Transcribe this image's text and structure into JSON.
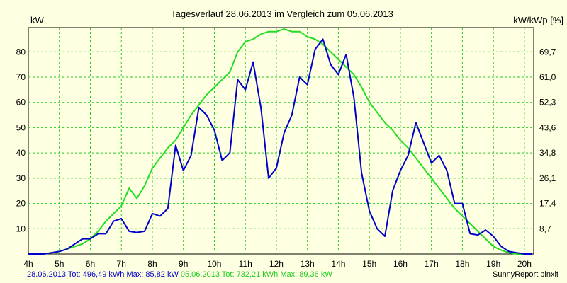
{
  "chart_data": {
    "type": "line",
    "title": "Tagesverlauf 28.06.2013 im Vergleich zum 05.06.2013",
    "ylabel_left": "kW",
    "ylabel_right": "kW/kWp [%]",
    "xlim": [
      4,
      20.3
    ],
    "ylim": [
      0,
      89.6
    ],
    "x_ticks": [
      4,
      5,
      6,
      7,
      8,
      9,
      10,
      11,
      12,
      13,
      14,
      15,
      16,
      17,
      18,
      19,
      20
    ],
    "x_tick_labels": [
      "4h",
      "5h",
      "6h",
      "7h",
      "8h",
      "9h",
      "10h",
      "11h",
      "12h",
      "13h",
      "14h",
      "15h",
      "16h",
      "17h",
      "18h",
      "19h",
      "20h"
    ],
    "y_ticks_left": [
      10,
      20,
      30,
      40,
      50,
      60,
      70,
      80
    ],
    "y_ticks_right": [
      8.7,
      17.4,
      26.1,
      34.8,
      43.6,
      52.3,
      61.0,
      69.7
    ],
    "y_tick_labels_right": [
      "8,7",
      "17,4",
      "26,1",
      "34,8",
      "43,6",
      "52,3",
      "61,0",
      "69,7"
    ],
    "grid": true,
    "series": [
      {
        "name": "28.06.2013",
        "color": "#0000cc",
        "x": [
          4.0,
          4.25,
          4.5,
          4.75,
          5.0,
          5.25,
          5.5,
          5.75,
          6.0,
          6.25,
          6.5,
          6.75,
          7.0,
          7.25,
          7.5,
          7.75,
          8.0,
          8.25,
          8.5,
          8.75,
          9.0,
          9.25,
          9.5,
          9.75,
          10.0,
          10.25,
          10.5,
          10.75,
          11.0,
          11.25,
          11.5,
          11.75,
          12.0,
          12.25,
          12.5,
          12.75,
          13.0,
          13.25,
          13.5,
          13.75,
          14.0,
          14.25,
          14.5,
          14.75,
          15.0,
          15.25,
          15.5,
          15.75,
          16.0,
          16.25,
          16.5,
          16.75,
          17.0,
          17.25,
          17.5,
          17.75,
          18.0,
          18.25,
          18.5,
          18.75,
          19.0,
          19.25,
          19.5,
          19.75,
          20.0,
          20.25
        ],
        "values": [
          0,
          0,
          0,
          0.5,
          1,
          2,
          4,
          6,
          6,
          8,
          8,
          13,
          14,
          9,
          8.5,
          9,
          16,
          15,
          18,
          43,
          33,
          39,
          58,
          55,
          49,
          37,
          40,
          69,
          65,
          76,
          58,
          30,
          34,
          48,
          55,
          70,
          67,
          81,
          85,
          75,
          71,
          79,
          62,
          32,
          17,
          10,
          7,
          25,
          33,
          39,
          52,
          44,
          36,
          39,
          33,
          20,
          20,
          8,
          7.5,
          9.5,
          7,
          3,
          1,
          0.5,
          0,
          0
        ]
      },
      {
        "name": "05.06.2013",
        "color": "#22dd22",
        "x": [
          4.0,
          4.25,
          4.5,
          4.75,
          5.0,
          5.25,
          5.5,
          5.75,
          6.0,
          6.25,
          6.5,
          6.75,
          7.0,
          7.25,
          7.5,
          7.75,
          8.0,
          8.25,
          8.5,
          8.75,
          9.0,
          9.25,
          9.5,
          9.75,
          10.0,
          10.25,
          10.5,
          10.75,
          11.0,
          11.25,
          11.5,
          11.75,
          12.0,
          12.25,
          12.5,
          12.75,
          13.0,
          13.25,
          13.5,
          13.75,
          14.0,
          14.25,
          14.5,
          14.75,
          15.0,
          15.25,
          15.5,
          15.75,
          16.0,
          16.25,
          16.5,
          16.75,
          17.0,
          17.25,
          17.5,
          17.75,
          18.0,
          18.25,
          18.5,
          18.75,
          19.0,
          19.25,
          19.5,
          19.75,
          20.0,
          20.25
        ],
        "values": [
          0,
          0,
          0,
          0.5,
          1,
          2,
          3,
          4,
          6,
          9,
          13,
          16,
          19,
          26,
          22,
          27,
          34,
          38,
          42,
          45,
          50,
          55,
          59,
          63,
          66,
          69,
          72,
          80,
          84,
          85,
          87,
          88,
          88,
          89,
          88,
          88,
          86,
          85,
          83,
          80,
          77,
          74,
          71,
          66,
          60,
          56,
          52,
          49,
          45,
          42,
          38,
          34,
          30,
          26,
          22,
          18,
          15,
          12,
          9,
          6,
          3,
          1.5,
          0.5,
          0,
          0,
          0
        ]
      }
    ]
  },
  "footer": {
    "left_prefix": "28.06.2013",
    "left_rest": " Tot: 496,49 kWh Max: 85,82 kW ",
    "right_prefix": "05.06.2013",
    "right_rest": " Tot: 732,21 kWh Max: 89,36 kW",
    "credit": "SunnyReport pinxit"
  }
}
